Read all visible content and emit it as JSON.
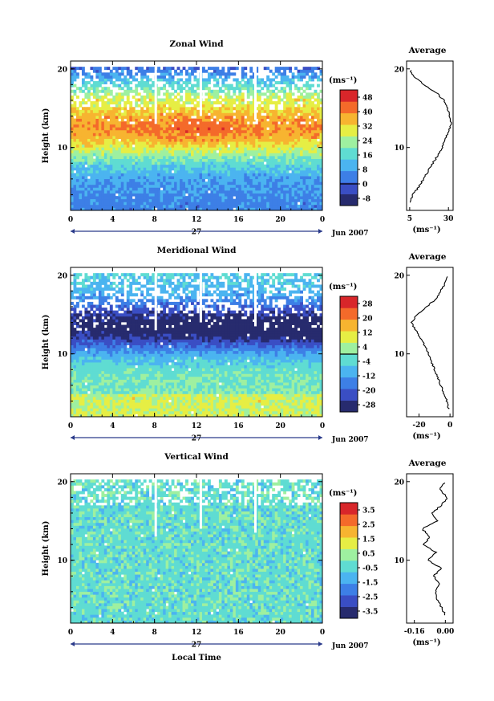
{
  "chart_data": [
    {
      "type": "heatmap",
      "title": "Zonal Wind",
      "ylabel": "Height (km)",
      "x_ticks": [
        "0",
        "4",
        "8",
        "12",
        "16",
        "20",
        "0"
      ],
      "y_ticks": [
        "10",
        "20"
      ],
      "xlim": [
        0,
        24
      ],
      "ylim": [
        2,
        21
      ],
      "date_center": "27",
      "date_right": "Jun 2007",
      "colorbar_unit": "(ms⁻¹)",
      "colorbar_ticks": [
        "-8",
        "0",
        "8",
        "16",
        "24",
        "32",
        "40",
        "48"
      ],
      "colorbar_range": [
        -12,
        52
      ],
      "profile": {
        "title": "Average",
        "x_ticks": [
          "5",
          "30"
        ],
        "xunit": "(ms⁻¹)",
        "xlim": [
          3,
          33
        ],
        "heights": [
          3,
          4,
          5,
          6,
          7,
          8,
          9,
          10,
          11,
          12,
          13,
          14,
          15,
          16,
          17,
          18,
          19,
          20
        ],
        "values": [
          5,
          7,
          11,
          14,
          17,
          20,
          23,
          26,
          28,
          30,
          32,
          31,
          29,
          27,
          22,
          14,
          8,
          5
        ]
      }
    },
    {
      "type": "heatmap",
      "title": "Meridional Wind",
      "ylabel": "Height (km)",
      "x_ticks": [
        "0",
        "4",
        "8",
        "12",
        "16",
        "20",
        "0"
      ],
      "y_ticks": [
        "10",
        "20"
      ],
      "xlim": [
        0,
        24
      ],
      "ylim": [
        2,
        21
      ],
      "date_center": "27",
      "date_right": "Jun 2007",
      "colorbar_unit": "(ms⁻¹)",
      "colorbar_ticks": [
        "-28",
        "-20",
        "-12",
        "-4",
        "4",
        "12",
        "20",
        "28"
      ],
      "colorbar_range": [
        -32,
        32
      ],
      "profile": {
        "title": "Average",
        "x_ticks": [
          "-20",
          "0"
        ],
        "xunit": "(ms⁻¹)",
        "xlim": [
          -28,
          2
        ],
        "heights": [
          3,
          4,
          5,
          6,
          7,
          8,
          9,
          10,
          11,
          12,
          13,
          14,
          15,
          16,
          17,
          18,
          19,
          20
        ],
        "values": [
          -1,
          -2,
          -4,
          -6,
          -8,
          -10,
          -12,
          -14,
          -16,
          -19,
          -22,
          -25,
          -21,
          -15,
          -9,
          -6,
          -3,
          -2
        ]
      }
    },
    {
      "type": "heatmap",
      "title": "Vertical Wind",
      "ylabel": "Height (km)",
      "xlabel": "Local Time",
      "x_ticks": [
        "0",
        "4",
        "8",
        "12",
        "16",
        "20",
        "0"
      ],
      "y_ticks": [
        "10",
        "20"
      ],
      "xlim": [
        0,
        24
      ],
      "ylim": [
        2,
        21
      ],
      "date_center": "27",
      "date_right": "Jun 2007",
      "colorbar_unit": "(ms⁻¹)",
      "colorbar_ticks": [
        "-3.5",
        "-2.5",
        "-1.5",
        "-0.5",
        "0.5",
        "1.5",
        "2.5",
        "3.5"
      ],
      "colorbar_range": [
        -4,
        4
      ],
      "profile": {
        "title": "Average",
        "x_ticks": [
          "-0.16",
          "0.00"
        ],
        "xunit": "(ms⁻¹)",
        "xlim": [
          -0.2,
          0.04
        ],
        "heights": [
          3,
          4,
          5,
          6,
          7,
          8,
          9,
          10,
          11,
          12,
          13,
          14,
          15,
          16,
          17,
          18,
          19,
          20
        ],
        "values": [
          0.0,
          -0.02,
          -0.04,
          -0.05,
          -0.03,
          -0.06,
          -0.02,
          -0.09,
          -0.05,
          -0.11,
          -0.08,
          -0.12,
          -0.04,
          -0.07,
          -0.02,
          0.01,
          -0.03,
          0.0
        ]
      }
    }
  ]
}
